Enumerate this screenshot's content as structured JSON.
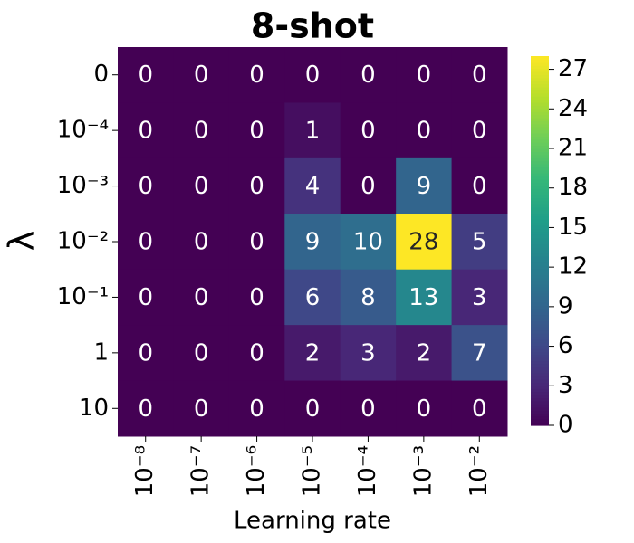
{
  "chart_data": {
    "type": "heatmap",
    "title": "8-shot",
    "xlabel": "Learning rate",
    "ylabel": "λ",
    "x_categories": [
      "10⁻⁸",
      "10⁻⁷",
      "10⁻⁶",
      "10⁻⁵",
      "10⁻⁴",
      "10⁻³",
      "10⁻²"
    ],
    "y_categories": [
      "0",
      "10⁻⁴",
      "10⁻³",
      "10⁻²",
      "10⁻¹",
      "1",
      "10"
    ],
    "values": [
      [
        0,
        0,
        0,
        0,
        0,
        0,
        0
      ],
      [
        0,
        0,
        0,
        1,
        0,
        0,
        0
      ],
      [
        0,
        0,
        0,
        4,
        0,
        9,
        0
      ],
      [
        0,
        0,
        0,
        9,
        10,
        28,
        5
      ],
      [
        0,
        0,
        0,
        6,
        8,
        13,
        3
      ],
      [
        0,
        0,
        0,
        2,
        3,
        2,
        7
      ],
      [
        0,
        0,
        0,
        0,
        0,
        0,
        0
      ]
    ],
    "colormap": "viridis",
    "zlim": [
      0,
      28
    ],
    "zticks": [
      0,
      3,
      6,
      9,
      12,
      15,
      18,
      21,
      24,
      27
    ]
  }
}
